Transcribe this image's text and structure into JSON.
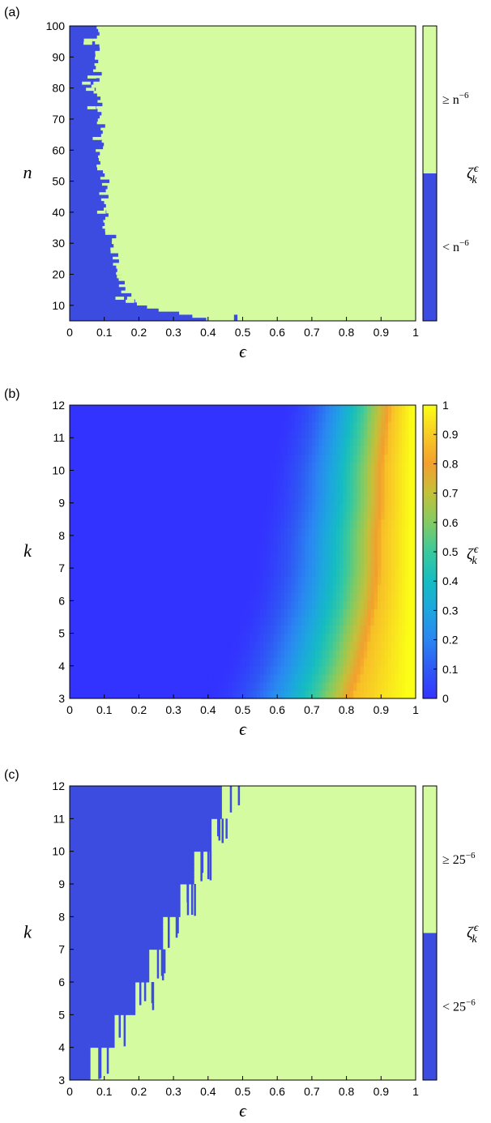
{
  "colors": {
    "below": "#3c4ce0",
    "above": "#d4fba0",
    "axis": "#000000"
  },
  "chart_data": [
    {
      "panel": "(a)",
      "type": "heatmap",
      "xlabel": "ϵ",
      "ylabel": "n",
      "colorbar_label": "ζ",
      "colorbar_label_sub": "k",
      "colorbar_label_sup": "ϵ",
      "xlim": [
        0,
        1
      ],
      "ylim": [
        5,
        100
      ],
      "xticks": [
        "0",
        "0.1",
        "0.2",
        "0.3",
        "0.4",
        "0.5",
        "0.6",
        "0.7",
        "0.8",
        "0.9",
        "1"
      ],
      "yticks": [
        "10",
        "20",
        "30",
        "40",
        "50",
        "60",
        "70",
        "80",
        "90",
        "100"
      ],
      "colorbar_categories": [
        {
          "label": "< n",
          "exp": "−6",
          "color": "#3c4ce0"
        },
        {
          "label": "≥ n",
          "exp": "−6",
          "color": "#d4fba0"
        }
      ],
      "boundary_threshold_eps": [
        {
          "n": 5,
          "eps": 0.41
        },
        {
          "n": 8,
          "eps": 0.29
        },
        {
          "n": 10,
          "eps": 0.19
        },
        {
          "n": 13,
          "eps": 0.17
        },
        {
          "n": 16,
          "eps": 0.15
        },
        {
          "n": 20,
          "eps": 0.14
        },
        {
          "n": 25,
          "eps": 0.13
        },
        {
          "n": 30,
          "eps": 0.13
        },
        {
          "n": 35,
          "eps": 0.11
        },
        {
          "n": 40,
          "eps": 0.1
        },
        {
          "n": 45,
          "eps": 0.1
        },
        {
          "n": 50,
          "eps": 0.1
        },
        {
          "n": 55,
          "eps": 0.09
        },
        {
          "n": 60,
          "eps": 0.09
        },
        {
          "n": 65,
          "eps": 0.09
        },
        {
          "n": 70,
          "eps": 0.09
        },
        {
          "n": 75,
          "eps": 0.08
        },
        {
          "n": 80,
          "eps": 0.08
        },
        {
          "n": 85,
          "eps": 0.08
        },
        {
          "n": 90,
          "eps": 0.08
        },
        {
          "n": 95,
          "eps": 0.08
        },
        {
          "n": 100,
          "eps": 0.08
        }
      ]
    },
    {
      "panel": "(b)",
      "type": "heatmap",
      "xlabel": "ϵ",
      "ylabel": "k",
      "colorbar_label": "ζ",
      "colorbar_label_sub": "k",
      "colorbar_label_sup": "ϵ",
      "xlim": [
        0,
        1
      ],
      "ylim": [
        3,
        12
      ],
      "zlim": [
        0,
        1
      ],
      "colormap": "parula",
      "xticks": [
        "0",
        "0.1",
        "0.2",
        "0.3",
        "0.4",
        "0.5",
        "0.6",
        "0.7",
        "0.8",
        "0.9",
        "1"
      ],
      "yticks": [
        "3",
        "4",
        "5",
        "6",
        "7",
        "8",
        "9",
        "10",
        "11",
        "12"
      ],
      "colorbar_ticks": [
        "0",
        "0.1",
        "0.2",
        "0.3",
        "0.4",
        "0.5",
        "0.6",
        "0.7",
        "0.8",
        "0.9",
        "1"
      ],
      "ridge_eps_near_peak": [
        {
          "k": 3,
          "eps": 0.82
        },
        {
          "k": 4,
          "eps": 0.85
        },
        {
          "k": 5,
          "eps": 0.87
        },
        {
          "k": 6,
          "eps": 0.89
        },
        {
          "k": 7,
          "eps": 0.9
        },
        {
          "k": 8,
          "eps": 0.9
        },
        {
          "k": 9,
          "eps": 0.91
        },
        {
          "k": 10,
          "eps": 0.91
        },
        {
          "k": 11,
          "eps": 0.92
        },
        {
          "k": 12,
          "eps": 0.93
        }
      ]
    },
    {
      "panel": "(c)",
      "type": "heatmap",
      "xlabel": "ϵ",
      "ylabel": "k",
      "colorbar_label": "ζ",
      "colorbar_label_sub": "k",
      "colorbar_label_sup": "ϵ",
      "xlim": [
        0,
        1
      ],
      "ylim": [
        3,
        12
      ],
      "xticks": [
        "0",
        "0.1",
        "0.2",
        "0.3",
        "0.4",
        "0.5",
        "0.6",
        "0.7",
        "0.8",
        "0.9",
        "1"
      ],
      "yticks": [
        "3",
        "4",
        "5",
        "6",
        "7",
        "8",
        "9",
        "10",
        "11",
        "12"
      ],
      "colorbar_categories": [
        {
          "label": "< 25",
          "exp": "−6",
          "color": "#3c4ce0"
        },
        {
          "label": "≥ 25",
          "exp": "−6",
          "color": "#d4fba0"
        }
      ],
      "boundary_threshold_eps": [
        {
          "k": 3,
          "eps": 0.06
        },
        {
          "k": 4,
          "eps": 0.13
        },
        {
          "k": 5,
          "eps": 0.19
        },
        {
          "k": 6,
          "eps": 0.23
        },
        {
          "k": 7,
          "eps": 0.27
        },
        {
          "k": 8,
          "eps": 0.32
        },
        {
          "k": 9,
          "eps": 0.36
        },
        {
          "k": 10,
          "eps": 0.41
        },
        {
          "k": 11,
          "eps": 0.44
        },
        {
          "k": 12,
          "eps": 0.46
        }
      ]
    }
  ]
}
